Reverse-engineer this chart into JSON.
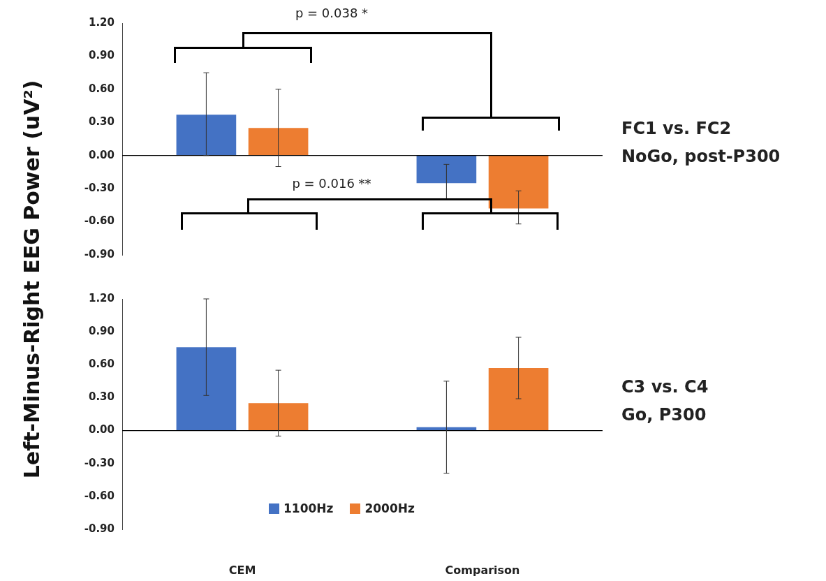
{
  "chart_data": [
    {
      "type": "bar",
      "ylabel": "Left-Minus-Right EEG Power (uV²)",
      "categories": [
        null,
        null
      ],
      "series": [
        {
          "color": "#4472c4",
          "values": [
            0.37,
            -0.25
          ],
          "errors": [
            [
              0.0,
              0.75
            ],
            [
              -0.4,
              -0.08
            ]
          ]
        },
        {
          "color": "#ed7d31",
          "values": [
            0.25,
            -0.48
          ],
          "errors": [
            [
              -0.1,
              0.6
            ],
            [
              -0.62,
              -0.32
            ]
          ]
        }
      ],
      "ylim": [
        -0.9,
        1.2
      ],
      "yticks": [
        {
          "value": 1.2,
          "label": "1.20"
        },
        {
          "value": 0.9,
          "label": "0.90"
        },
        {
          "value": 0.6,
          "label": "0.60"
        },
        {
          "value": 0.3,
          "label": "0.30"
        },
        {
          "value": 0,
          "label": "0.00"
        },
        {
          "value": -0.3,
          "label": "-0.30"
        },
        {
          "value": -0.6,
          "label": "-0.60"
        },
        {
          "value": -0.9,
          "label": "-0.90"
        }
      ],
      "tick_labels": "y",
      "grid": false,
      "legend": false,
      "ref_lines": [
        {
          "axis": "y",
          "value": 0,
          "color": "#000000"
        }
      ],
      "annotations": [
        "p = 0.038 *",
        "FC1 vs. FC2",
        "NoGo, post-P300"
      ]
    },
    {
      "type": "bar",
      "categories": [
        "CEM",
        "Comparison"
      ],
      "series": [
        {
          "name": "1100Hz",
          "color": "#4472c4",
          "values": [
            0.76,
            0.03
          ],
          "errors": [
            [
              0.32,
              1.2
            ],
            [
              -0.39,
              0.45
            ]
          ]
        },
        {
          "name": "2000Hz",
          "color": "#ed7d31",
          "values": [
            0.25,
            0.57
          ],
          "errors": [
            [
              -0.05,
              0.55
            ],
            [
              0.29,
              0.85
            ]
          ]
        }
      ],
      "ylim": [
        -0.9,
        1.2
      ],
      "yticks": [
        {
          "value": 1.2,
          "label": "1.20"
        },
        {
          "value": 0.9,
          "label": "0.90"
        },
        {
          "value": 0.6,
          "label": "0.60"
        },
        {
          "value": 0.3,
          "label": "0.30"
        },
        {
          "value": 0,
          "label": "0.00"
        },
        {
          "value": -0.3,
          "label": "-0.30"
        },
        {
          "value": -0.6,
          "label": "-0.60"
        },
        {
          "value": -0.9,
          "label": "-0.90"
        }
      ],
      "grid": false,
      "legend": "bottom",
      "ref_lines": [
        {
          "axis": "y",
          "value": 0,
          "color": "#000000"
        }
      ],
      "annotations": [
        "p = 0.016 **",
        "C3 vs. C4",
        "Go, P300"
      ]
    }
  ]
}
